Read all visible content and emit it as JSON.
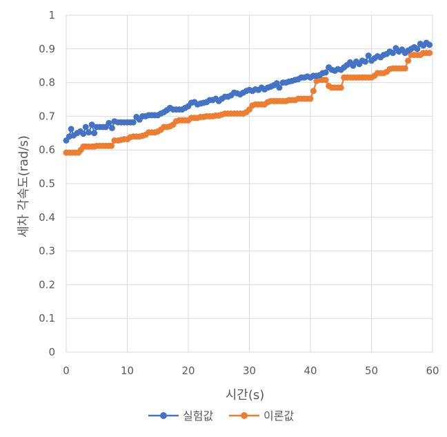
{
  "chart_data": {
    "type": "line",
    "xlabel": "시간(s)",
    "ylabel": "세차 각속도(rad/s)",
    "xlim": [
      0,
      60
    ],
    "ylim": [
      0,
      1
    ],
    "xticks": [
      0,
      10,
      20,
      30,
      40,
      50,
      60
    ],
    "yticks": [
      0,
      0.1,
      0.2,
      0.3,
      0.4,
      0.5,
      0.6,
      0.7,
      0.8,
      0.9,
      1
    ],
    "ytick_labels": [
      "0",
      "0.1",
      "0.2",
      "0.3",
      "0.4",
      "0.5",
      "0.6",
      "0.7",
      "0.8",
      "0.9",
      "1"
    ],
    "grid": true,
    "legend_position": "bottom",
    "series": [
      {
        "name": "실험값",
        "color": "#4472C4",
        "marker": "circle",
        "points": [
          [
            0,
            0.628
          ],
          [
            0.5,
            0.64
          ],
          [
            0.8,
            0.662
          ],
          [
            1.2,
            0.643
          ],
          [
            1.8,
            0.65
          ],
          [
            2.3,
            0.655
          ],
          [
            2.8,
            0.648
          ],
          [
            3.2,
            0.668
          ],
          [
            3.7,
            0.652
          ],
          [
            4.2,
            0.675
          ],
          [
            4.6,
            0.65
          ],
          [
            5.0,
            0.668
          ],
          [
            5.5,
            0.668
          ],
          [
            6.0,
            0.668
          ],
          [
            6.5,
            0.668
          ],
          [
            7.0,
            0.68
          ],
          [
            7.5,
            0.665
          ],
          [
            7.9,
            0.685
          ],
          [
            8.5,
            0.682
          ],
          [
            9.0,
            0.682
          ],
          [
            9.5,
            0.682
          ],
          [
            10.0,
            0.682
          ],
          [
            10.5,
            0.682
          ],
          [
            11.0,
            0.682
          ],
          [
            11.5,
            0.698
          ],
          [
            12.0,
            0.69
          ],
          [
            12.5,
            0.7
          ],
          [
            13.0,
            0.7
          ],
          [
            13.5,
            0.703
          ],
          [
            14.0,
            0.703
          ],
          [
            14.5,
            0.703
          ],
          [
            15.0,
            0.703
          ],
          [
            15.5,
            0.708
          ],
          [
            16.0,
            0.712
          ],
          [
            16.5,
            0.718
          ],
          [
            17.0,
            0.725
          ],
          [
            17.5,
            0.72
          ],
          [
            18.0,
            0.72
          ],
          [
            18.5,
            0.72
          ],
          [
            19.0,
            0.72
          ],
          [
            19.5,
            0.725
          ],
          [
            20.0,
            0.73
          ],
          [
            20.5,
            0.74
          ],
          [
            21.0,
            0.742
          ],
          [
            21.5,
            0.735
          ],
          [
            22.0,
            0.738
          ],
          [
            22.5,
            0.74
          ],
          [
            23.0,
            0.742
          ],
          [
            23.5,
            0.748
          ],
          [
            24.0,
            0.748
          ],
          [
            24.5,
            0.752
          ],
          [
            25.0,
            0.745
          ],
          [
            25.5,
            0.752
          ],
          [
            26.0,
            0.758
          ],
          [
            26.5,
            0.758
          ],
          [
            27.0,
            0.762
          ],
          [
            27.5,
            0.77
          ],
          [
            28.0,
            0.768
          ],
          [
            28.5,
            0.765
          ],
          [
            29.0,
            0.77
          ],
          [
            29.5,
            0.775
          ],
          [
            30.0,
            0.778
          ],
          [
            30.5,
            0.775
          ],
          [
            31.0,
            0.78
          ],
          [
            31.5,
            0.778
          ],
          [
            32.0,
            0.785
          ],
          [
            32.5,
            0.78
          ],
          [
            33.0,
            0.785
          ],
          [
            33.5,
            0.788
          ],
          [
            34.0,
            0.792
          ],
          [
            34.5,
            0.798
          ],
          [
            34.9,
            0.785
          ],
          [
            35.5,
            0.8
          ],
          [
            36.0,
            0.8
          ],
          [
            36.5,
            0.803
          ],
          [
            37.0,
            0.805
          ],
          [
            37.5,
            0.808
          ],
          [
            38.0,
            0.81
          ],
          [
            38.5,
            0.815
          ],
          [
            39.0,
            0.815
          ],
          [
            39.5,
            0.818
          ],
          [
            40.0,
            0.815
          ],
          [
            40.5,
            0.82
          ],
          [
            41.0,
            0.82
          ],
          [
            41.5,
            0.822
          ],
          [
            42.0,
            0.828
          ],
          [
            42.5,
            0.83
          ],
          [
            43.0,
            0.845
          ],
          [
            43.5,
            0.838
          ],
          [
            44.0,
            0.835
          ],
          [
            44.5,
            0.84
          ],
          [
            45.0,
            0.838
          ],
          [
            45.5,
            0.845
          ],
          [
            46.0,
            0.852
          ],
          [
            46.5,
            0.86
          ],
          [
            47.0,
            0.85
          ],
          [
            47.5,
            0.862
          ],
          [
            48.0,
            0.855
          ],
          [
            48.5,
            0.865
          ],
          [
            49.0,
            0.862
          ],
          [
            49.5,
            0.88
          ],
          [
            50.0,
            0.865
          ],
          [
            50.5,
            0.872
          ],
          [
            51.0,
            0.878
          ],
          [
            51.5,
            0.875
          ],
          [
            52.0,
            0.882
          ],
          [
            52.5,
            0.885
          ],
          [
            53.0,
            0.892
          ],
          [
            53.5,
            0.888
          ],
          [
            54.0,
            0.902
          ],
          [
            54.5,
            0.892
          ],
          [
            55.0,
            0.898
          ],
          [
            55.5,
            0.888
          ],
          [
            56.0,
            0.895
          ],
          [
            56.5,
            0.9
          ],
          [
            57.0,
            0.905
          ],
          [
            57.5,
            0.9
          ],
          [
            58.0,
            0.915
          ],
          [
            58.5,
            0.91
          ],
          [
            59.0,
            0.918
          ],
          [
            59.5,
            0.912
          ]
        ]
      },
      {
        "name": "이론값",
        "color": "#ED7D31",
        "marker": "circle",
        "points": [
          [
            0,
            0.592
          ],
          [
            0.5,
            0.592
          ],
          [
            1.0,
            0.592
          ],
          [
            1.5,
            0.592
          ],
          [
            2.0,
            0.592
          ],
          [
            2.4,
            0.6
          ],
          [
            2.8,
            0.61
          ],
          [
            3.2,
            0.61
          ],
          [
            3.7,
            0.61
          ],
          [
            4.2,
            0.61
          ],
          [
            4.6,
            0.61
          ],
          [
            5.0,
            0.612
          ],
          [
            5.5,
            0.612
          ],
          [
            6.0,
            0.612
          ],
          [
            6.5,
            0.612
          ],
          [
            7.0,
            0.612
          ],
          [
            7.4,
            0.612
          ],
          [
            7.9,
            0.628
          ],
          [
            8.5,
            0.628
          ],
          [
            9.0,
            0.63
          ],
          [
            9.5,
            0.632
          ],
          [
            10.0,
            0.632
          ],
          [
            10.5,
            0.638
          ],
          [
            11.0,
            0.64
          ],
          [
            11.5,
            0.64
          ],
          [
            12.0,
            0.64
          ],
          [
            12.5,
            0.642
          ],
          [
            13.0,
            0.645
          ],
          [
            13.5,
            0.652
          ],
          [
            14.0,
            0.652
          ],
          [
            14.5,
            0.652
          ],
          [
            15.0,
            0.655
          ],
          [
            15.5,
            0.66
          ],
          [
            16.0,
            0.668
          ],
          [
            16.5,
            0.668
          ],
          [
            17.0,
            0.67
          ],
          [
            17.5,
            0.675
          ],
          [
            18.0,
            0.685
          ],
          [
            18.5,
            0.688
          ],
          [
            19.0,
            0.688
          ],
          [
            19.5,
            0.688
          ],
          [
            20.0,
            0.688
          ],
          [
            20.5,
            0.695
          ],
          [
            21.0,
            0.695
          ],
          [
            21.5,
            0.695
          ],
          [
            22.0,
            0.698
          ],
          [
            22.5,
            0.698
          ],
          [
            23.0,
            0.7
          ],
          [
            23.5,
            0.7
          ],
          [
            24.0,
            0.7
          ],
          [
            24.5,
            0.702
          ],
          [
            25.0,
            0.702
          ],
          [
            25.5,
            0.705
          ],
          [
            26.0,
            0.708
          ],
          [
            26.5,
            0.708
          ],
          [
            27.0,
            0.708
          ],
          [
            27.5,
            0.708
          ],
          [
            28.0,
            0.708
          ],
          [
            28.5,
            0.708
          ],
          [
            29.0,
            0.708
          ],
          [
            29.5,
            0.712
          ],
          [
            30.0,
            0.72
          ],
          [
            30.5,
            0.732
          ],
          [
            31.0,
            0.735
          ],
          [
            31.5,
            0.735
          ],
          [
            32.0,
            0.735
          ],
          [
            32.5,
            0.735
          ],
          [
            33.0,
            0.742
          ],
          [
            33.5,
            0.745
          ],
          [
            34.0,
            0.745
          ],
          [
            34.5,
            0.745
          ],
          [
            35.0,
            0.745
          ],
          [
            35.5,
            0.745
          ],
          [
            36.0,
            0.745
          ],
          [
            36.5,
            0.748
          ],
          [
            37.0,
            0.748
          ],
          [
            37.5,
            0.748
          ],
          [
            38.0,
            0.752
          ],
          [
            38.5,
            0.752
          ],
          [
            39.0,
            0.752
          ],
          [
            39.5,
            0.752
          ],
          [
            40.0,
            0.752
          ],
          [
            40.5,
            0.775
          ],
          [
            41.0,
            0.805
          ],
          [
            41.5,
            0.808
          ],
          [
            42.0,
            0.808
          ],
          [
            42.5,
            0.808
          ],
          [
            43.0,
            0.79
          ],
          [
            43.5,
            0.785
          ],
          [
            44.0,
            0.785
          ],
          [
            44.5,
            0.785
          ],
          [
            45.0,
            0.785
          ],
          [
            45.5,
            0.815
          ],
          [
            46.0,
            0.815
          ],
          [
            46.5,
            0.815
          ],
          [
            47.0,
            0.815
          ],
          [
            47.5,
            0.815
          ],
          [
            48.0,
            0.815
          ],
          [
            48.5,
            0.815
          ],
          [
            49.0,
            0.815
          ],
          [
            49.5,
            0.815
          ],
          [
            50.0,
            0.815
          ],
          [
            50.5,
            0.82
          ],
          [
            51.0,
            0.828
          ],
          [
            51.5,
            0.828
          ],
          [
            52.0,
            0.828
          ],
          [
            52.5,
            0.832
          ],
          [
            53.0,
            0.84
          ],
          [
            53.5,
            0.842
          ],
          [
            54.0,
            0.842
          ],
          [
            54.5,
            0.842
          ],
          [
            55.0,
            0.842
          ],
          [
            55.5,
            0.842
          ],
          [
            56.0,
            0.865
          ],
          [
            56.5,
            0.882
          ],
          [
            57.0,
            0.882
          ],
          [
            57.5,
            0.882
          ],
          [
            58.0,
            0.882
          ],
          [
            58.5,
            0.888
          ],
          [
            59.0,
            0.888
          ],
          [
            59.5,
            0.888
          ]
        ]
      }
    ]
  }
}
